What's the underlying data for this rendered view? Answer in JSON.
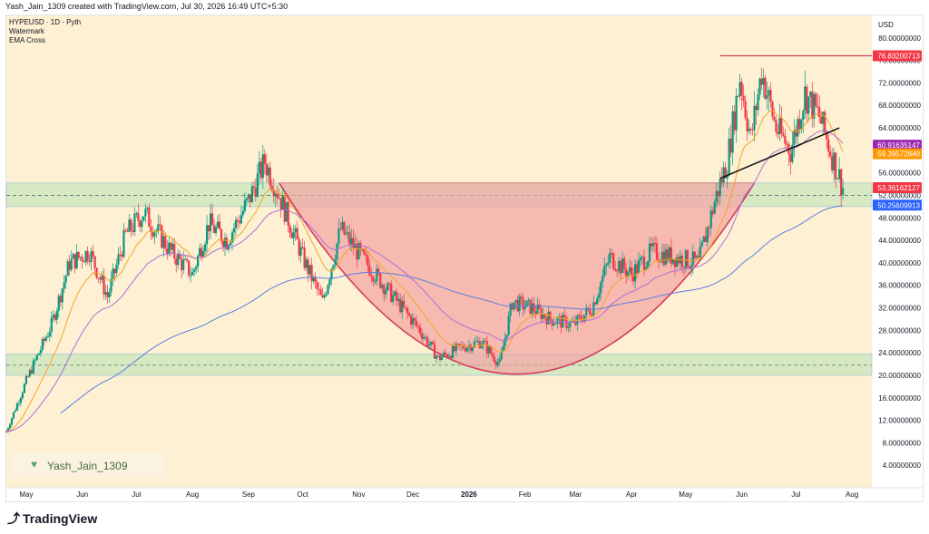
{
  "header": {
    "text": "Yash_Jain_1309 created with TradingView.com, Jul 30, 2026 16:49 UTC+5:30"
  },
  "legend": {
    "symbol": "HYPEUSD · 1D · Pyth",
    "item2": "Watermark",
    "item3": "EMA Cross"
  },
  "watermark": {
    "text": "Yash_Jain_1309"
  },
  "footer": {
    "logo_text": "TradingView"
  },
  "colors": {
    "background": "#fdf0d3",
    "up": "#089981",
    "down": "#f23645",
    "ema_fast": "#f5a623",
    "ema_mid": "#b06fd6",
    "ema_slow": "#5b7fe0",
    "bowl": "#f2a3a3",
    "zone": "#cfe8bf"
  },
  "chart_data": {
    "type": "candlestick",
    "currency": "USD",
    "ylim": [
      0,
      84
    ],
    "yticks": [
      "80.00000000",
      "76.00000000",
      "72.00000000",
      "68.00000000",
      "64.00000000",
      "60.00000000",
      "56.00000000",
      "52.00000000",
      "48.00000000",
      "44.00000000",
      "40.00000000",
      "36.00000000",
      "32.00000000",
      "28.00000000",
      "24.00000000",
      "20.00000000",
      "16.00000000",
      "12.00000000",
      "8.00000000",
      "4.00000000"
    ],
    "x_labels": [
      "May",
      "Jun",
      "Jul",
      "Aug",
      "Sep",
      "Oct",
      "Nov",
      "Dec",
      "2026",
      "Feb",
      "Mar",
      "Apr",
      "May",
      "Jun",
      "Jul",
      "Aug"
    ],
    "price_tags": [
      {
        "value": 76.832,
        "label": "76.83200713",
        "color": "#f23645"
      },
      {
        "value": 60.916,
        "label": "60.91635147",
        "color": "#9c27b0"
      },
      {
        "value": 59.396,
        "label": "59.39572840",
        "color": "#ff9800"
      },
      {
        "value": 53.362,
        "label": "53.36162127",
        "color": "#f23645"
      },
      {
        "value": 50.256,
        "label": "50.25609913",
        "color": "#2962ff"
      }
    ],
    "zones": [
      {
        "low": 50,
        "high": 54.2
      },
      {
        "low": 20,
        "high": 23.8
      }
    ],
    "dashed_levels": [
      52,
      21.8
    ],
    "resistance_top": 76.83,
    "bowl": {
      "rim": 54.2,
      "bottom": 20.2
    },
    "trendline": {
      "start": 55,
      "end": 64
    },
    "price_path": [
      [
        "2025-04-20",
        10
      ],
      [
        "2025-05-01",
        19
      ],
      [
        "2025-05-15",
        29
      ],
      [
        "2025-05-25",
        40
      ],
      [
        "2025-06-05",
        42
      ],
      [
        "2025-06-15",
        34
      ],
      [
        "2025-06-25",
        45
      ],
      [
        "2025-07-05",
        49
      ],
      [
        "2025-07-20",
        42
      ],
      [
        "2025-08-01",
        38
      ],
      [
        "2025-08-10",
        47
      ],
      [
        "2025-08-20",
        44
      ],
      [
        "2025-09-01",
        51
      ],
      [
        "2025-09-10",
        58
      ],
      [
        "2025-09-18",
        52
      ],
      [
        "2025-10-01",
        41
      ],
      [
        "2025-10-12",
        33
      ],
      [
        "2025-10-22",
        46
      ],
      [
        "2025-11-05",
        40
      ],
      [
        "2025-11-20",
        34
      ],
      [
        "2025-12-05",
        28
      ],
      [
        "2025-12-15",
        23
      ],
      [
        "2025-12-28",
        25
      ],
      [
        "2026-01-08",
        26
      ],
      [
        "2026-01-18",
        22
      ],
      [
        "2026-01-25",
        33
      ],
      [
        "2026-02-05",
        32
      ],
      [
        "2026-02-15",
        30
      ],
      [
        "2026-02-28",
        29
      ],
      [
        "2026-03-10",
        32
      ],
      [
        "2026-03-20",
        41
      ],
      [
        "2026-04-01",
        38
      ],
      [
        "2026-04-12",
        42
      ],
      [
        "2026-04-25",
        41
      ],
      [
        "2026-05-08",
        40
      ],
      [
        "2026-05-18",
        52
      ],
      [
        "2026-05-24",
        58
      ],
      [
        "2026-05-31",
        73
      ],
      [
        "2026-06-06",
        62
      ],
      [
        "2026-06-12",
        74
      ],
      [
        "2026-06-20",
        64
      ],
      [
        "2026-06-28",
        60
      ],
      [
        "2026-07-06",
        70
      ],
      [
        "2026-07-14",
        66
      ],
      [
        "2026-07-20",
        60
      ],
      [
        "2026-07-27",
        53.36
      ]
    ]
  }
}
